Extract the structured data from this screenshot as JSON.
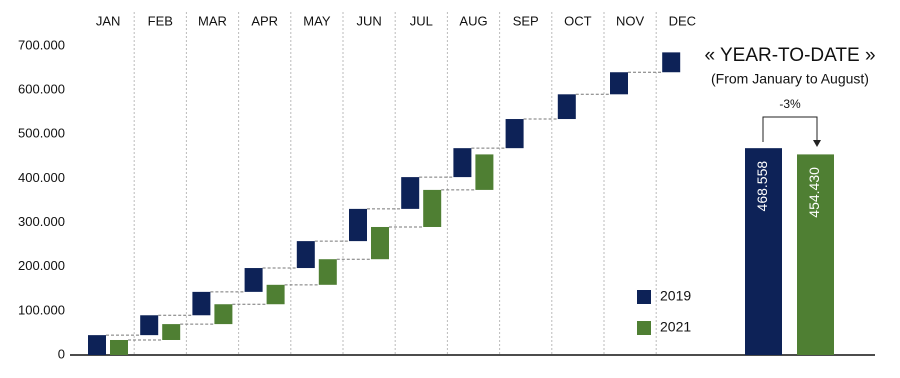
{
  "chart_data": [
    {
      "type": "waterfall",
      "categories": [
        "JAN",
        "FEB",
        "MAR",
        "APR",
        "MAY",
        "JUN",
        "JUL",
        "AUG",
        "SEP",
        "OCT",
        "NOV",
        "DEC"
      ],
      "series": [
        {
          "name": "2019",
          "color": "#0d2257",
          "values": [
            45000,
            45000,
            53000,
            54000,
            61000,
            73000,
            72000,
            65558,
            66000,
            56000,
            50000,
            45000
          ]
        },
        {
          "name": "2021",
          "color": "#4f7f33",
          "values": [
            34000,
            36000,
            45000,
            44000,
            58000,
            73000,
            84000,
            80430,
            null,
            null,
            null,
            null
          ]
        }
      ],
      "ylim": [
        0,
        700000
      ],
      "yticks": [
        0,
        {
          "value": 100000,
          "label": "100.000"
        },
        {
          "value": 200000,
          "label": "200.000"
        },
        {
          "value": 300000,
          "label": "300.000"
        },
        {
          "value": 400000,
          "label": "400.000"
        },
        {
          "value": 500000,
          "label": "500.000"
        },
        {
          "value": 600000,
          "label": "600.000"
        },
        {
          "value": 700000,
          "label": "700.000"
        }
      ],
      "grid": true,
      "legend": "lower right"
    },
    {
      "type": "bar",
      "title": "« YEAR-TO-DATE »",
      "subtitle": "(From January to August)",
      "annotation": "-3%",
      "values": [
        468558,
        454430
      ],
      "value_labels": [
        "468.558",
        "454.430"
      ],
      "colors": [
        "#0d2257",
        "#4f7f33"
      ]
    }
  ]
}
